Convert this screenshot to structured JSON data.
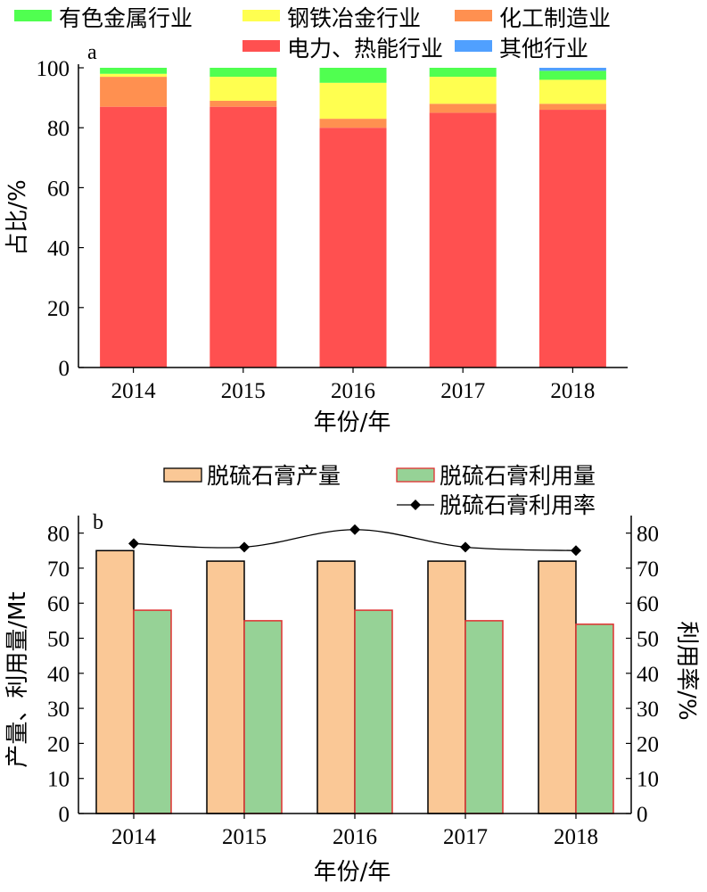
{
  "chart_data": [
    {
      "type": "bar",
      "stacked": true,
      "panel": "a",
      "categories": [
        "2014",
        "2015",
        "2016",
        "2017",
        "2018"
      ],
      "series": [
        {
          "name": "电力、热能行业",
          "color": "#ff5050",
          "values": [
            87,
            87,
            80,
            85,
            86
          ]
        },
        {
          "name": "化工制造业",
          "color": "#ff9050",
          "values": [
            10,
            2,
            3,
            3,
            2
          ]
        },
        {
          "name": "钢铁冶金行业",
          "color": "#ffff50",
          "values": [
            1,
            8,
            12,
            9,
            8
          ]
        },
        {
          "name": "有色金属行业",
          "color": "#50ff50",
          "values": [
            2,
            3,
            5,
            3,
            3
          ]
        },
        {
          "name": "其他行业",
          "color": "#50a0ff",
          "values": [
            0,
            0,
            0,
            0,
            1
          ]
        }
      ],
      "legend_order": [
        3,
        2,
        1,
        0,
        4
      ],
      "xlabel": "年份/年",
      "ylabel": "占比/%",
      "ylim": [
        0,
        100
      ],
      "yticks": [
        "0",
        "20",
        "40",
        "60",
        "80",
        "100"
      ],
      "legend": "top"
    },
    {
      "type": "bar",
      "panel": "b",
      "categories": [
        "2014",
        "2015",
        "2016",
        "2017",
        "2018"
      ],
      "series": [
        {
          "name": "脱硫石膏产量",
          "color": "#fac896",
          "stroke": "#000000",
          "values": [
            75,
            72,
            72,
            72,
            72
          ]
        },
        {
          "name": "脱硫石膏利用量",
          "color": "#96d296",
          "stroke": "#e03030",
          "values": [
            58,
            55,
            58,
            55,
            54
          ]
        }
      ],
      "line_series": {
        "name": "脱硫石膏利用率",
        "axis": "right",
        "values": [
          77,
          76,
          81,
          76,
          75
        ]
      },
      "xlabel": "年份/年",
      "ylabel_left": "产量、利用量/Mt",
      "ylabel_right": "利用率/%",
      "ylim_left": [
        0,
        85
      ],
      "ylim_right": [
        0,
        85
      ],
      "yticks": [
        "0",
        "10",
        "20",
        "30",
        "40",
        "50",
        "60",
        "70",
        "80"
      ],
      "legend": "top-right"
    }
  ]
}
